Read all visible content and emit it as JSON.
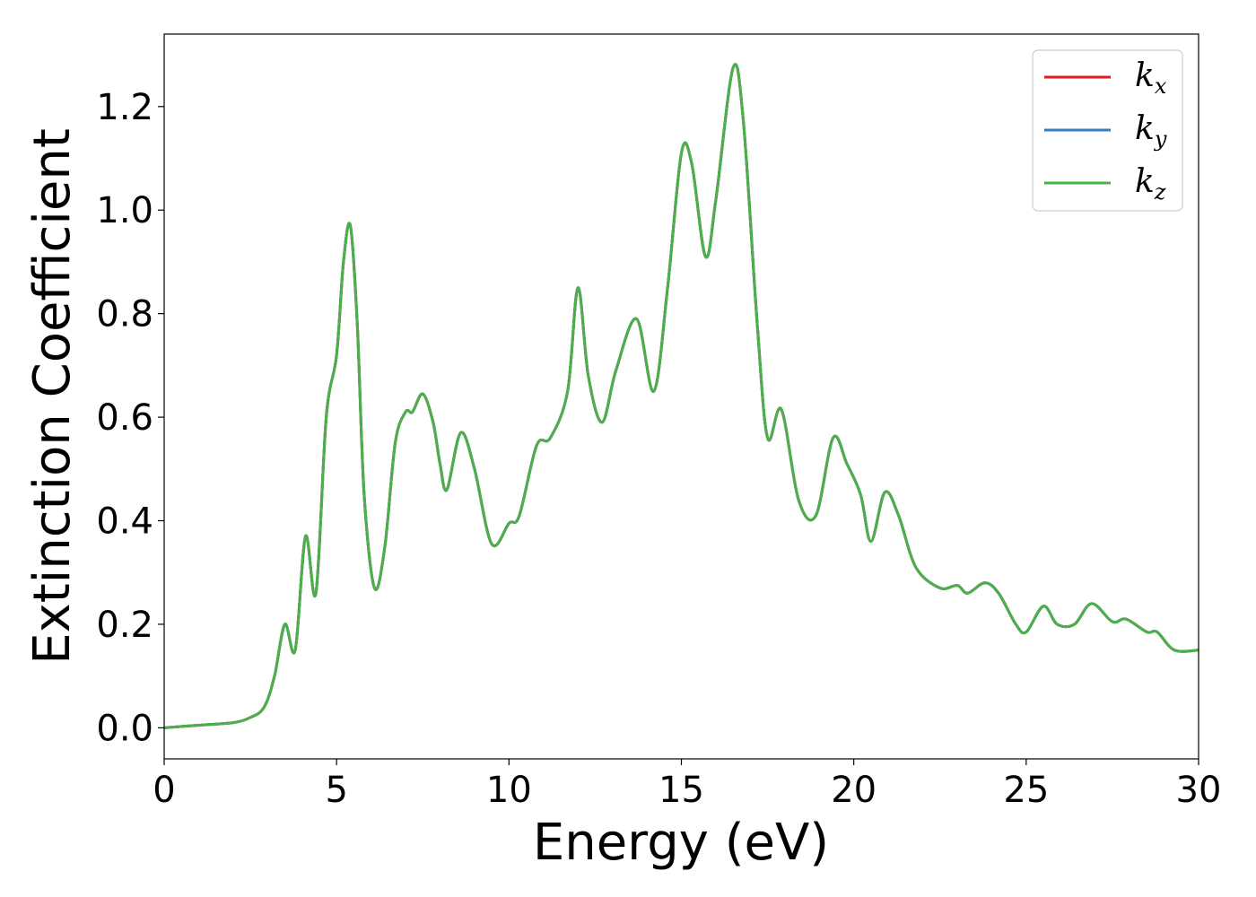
{
  "chart_data": {
    "type": "line",
    "title": "",
    "xlabel": "Energy (eV)",
    "ylabel": "Extinction Coefficient",
    "xlim": [
      0,
      30
    ],
    "ylim": [
      -0.06,
      1.34
    ],
    "xticks": [
      0,
      5,
      10,
      15,
      20,
      25,
      30
    ],
    "xtick_labels": [
      "0",
      "5",
      "10",
      "15",
      "20",
      "25",
      "30"
    ],
    "yticks": [
      0.0,
      0.2,
      0.4,
      0.6,
      0.8,
      1.0,
      1.2
    ],
    "ytick_labels": [
      "0.0",
      "0.2",
      "0.4",
      "0.6",
      "0.8",
      "1.0",
      "1.2"
    ],
    "grid": false,
    "legend_position": "top-right",
    "x": [
      0,
      1,
      2,
      2.5,
      2.9,
      3.2,
      3.5,
      3.8,
      4.1,
      4.4,
      4.7,
      5.0,
      5.2,
      5.4,
      5.6,
      5.8,
      6.1,
      6.4,
      6.7,
      7.0,
      7.2,
      7.5,
      7.8,
      8.0,
      8.2,
      8.6,
      9.0,
      9.5,
      10.0,
      10.3,
      10.8,
      11.2,
      11.7,
      12.0,
      12.3,
      12.7,
      13.1,
      13.7,
      14.2,
      14.6,
      15.0,
      15.3,
      15.7,
      16.0,
      16.5,
      16.8,
      17.2,
      17.5,
      17.9,
      18.4,
      18.9,
      19.4,
      19.8,
      20.2,
      20.5,
      20.9,
      21.3,
      21.8,
      22.5,
      23.0,
      23.3,
      23.8,
      24.2,
      24.7,
      25.0,
      25.5,
      25.9,
      26.4,
      26.9,
      27.5,
      27.9,
      28.5,
      28.8,
      29.3,
      30.0
    ],
    "series": [
      {
        "name": "k_x",
        "label_base": "k",
        "label_sub": "x",
        "color": "#e41a1c",
        "values": [
          0.0,
          0.005,
          0.01,
          0.02,
          0.04,
          0.1,
          0.2,
          0.15,
          0.37,
          0.26,
          0.6,
          0.72,
          0.9,
          0.97,
          0.78,
          0.45,
          0.27,
          0.35,
          0.55,
          0.61,
          0.61,
          0.645,
          0.59,
          0.51,
          0.46,
          0.57,
          0.5,
          0.355,
          0.395,
          0.41,
          0.545,
          0.56,
          0.65,
          0.85,
          0.68,
          0.59,
          0.69,
          0.79,
          0.65,
          0.85,
          1.11,
          1.09,
          0.91,
          1.02,
          1.275,
          1.17,
          0.78,
          0.56,
          0.615,
          0.44,
          0.41,
          0.56,
          0.51,
          0.45,
          0.36,
          0.455,
          0.41,
          0.31,
          0.27,
          0.275,
          0.26,
          0.28,
          0.26,
          0.2,
          0.185,
          0.235,
          0.2,
          0.2,
          0.24,
          0.205,
          0.21,
          0.185,
          0.185,
          0.15,
          0.15
        ]
      },
      {
        "name": "k_y",
        "label_base": "k",
        "label_sub": "y",
        "color": "#377eb8",
        "values": [
          0.0,
          0.005,
          0.01,
          0.02,
          0.04,
          0.1,
          0.2,
          0.15,
          0.37,
          0.26,
          0.6,
          0.72,
          0.9,
          0.97,
          0.78,
          0.45,
          0.27,
          0.35,
          0.55,
          0.61,
          0.61,
          0.645,
          0.59,
          0.51,
          0.46,
          0.57,
          0.5,
          0.355,
          0.395,
          0.41,
          0.545,
          0.56,
          0.65,
          0.85,
          0.68,
          0.59,
          0.69,
          0.79,
          0.65,
          0.85,
          1.11,
          1.09,
          0.91,
          1.02,
          1.275,
          1.17,
          0.78,
          0.56,
          0.615,
          0.44,
          0.41,
          0.56,
          0.51,
          0.45,
          0.36,
          0.455,
          0.41,
          0.31,
          0.27,
          0.275,
          0.26,
          0.28,
          0.26,
          0.2,
          0.185,
          0.235,
          0.2,
          0.2,
          0.24,
          0.205,
          0.21,
          0.185,
          0.185,
          0.15,
          0.15
        ]
      },
      {
        "name": "k_z",
        "label_base": "k",
        "label_sub": "z",
        "color": "#4daf4a",
        "values": [
          0.0,
          0.005,
          0.01,
          0.02,
          0.04,
          0.1,
          0.2,
          0.15,
          0.37,
          0.26,
          0.6,
          0.72,
          0.9,
          0.97,
          0.78,
          0.45,
          0.27,
          0.35,
          0.55,
          0.61,
          0.61,
          0.645,
          0.59,
          0.51,
          0.46,
          0.57,
          0.5,
          0.355,
          0.395,
          0.41,
          0.545,
          0.56,
          0.65,
          0.85,
          0.68,
          0.59,
          0.69,
          0.79,
          0.65,
          0.85,
          1.11,
          1.09,
          0.91,
          1.02,
          1.275,
          1.17,
          0.78,
          0.56,
          0.615,
          0.44,
          0.41,
          0.56,
          0.51,
          0.45,
          0.36,
          0.455,
          0.41,
          0.31,
          0.27,
          0.275,
          0.26,
          0.28,
          0.26,
          0.2,
          0.185,
          0.235,
          0.2,
          0.2,
          0.24,
          0.205,
          0.21,
          0.185,
          0.185,
          0.15,
          0.15
        ]
      }
    ]
  }
}
